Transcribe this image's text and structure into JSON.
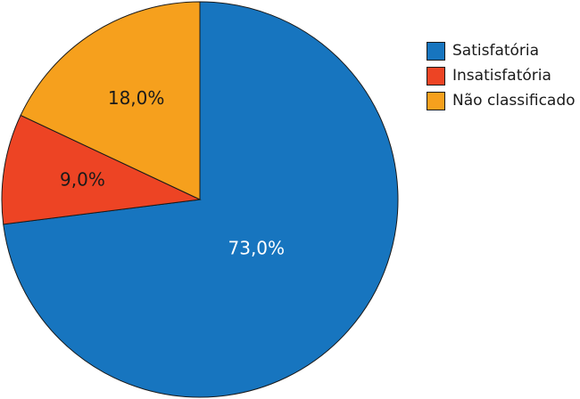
{
  "chart_data": {
    "type": "pie",
    "start_angle_deg": 0,
    "direction": "clockwise",
    "legend_position": "right",
    "slices": [
      {
        "name": "Satisfatória",
        "value": 73.0,
        "label": "73,0%",
        "color": "#1775bf",
        "label_color": "#ffffff"
      },
      {
        "name": "Insatisfatória",
        "value": 9.0,
        "label": "9,0%",
        "color": "#ed4424",
        "label_color": "#1a1a1a"
      },
      {
        "name": "Não classificado",
        "value": 18.0,
        "label": "18,0%",
        "color": "#f6a01d",
        "label_color": "#1a1a1a"
      }
    ]
  }
}
